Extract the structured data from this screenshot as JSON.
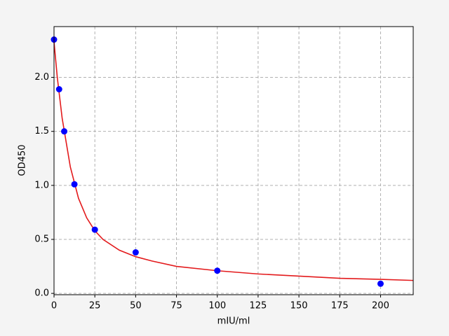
{
  "chart_data": {
    "type": "scatter",
    "x_label": "mIU/ml",
    "y_label": "OD450",
    "xlim": [
      0,
      220
    ],
    "ylim": [
      -0.012,
      2.47
    ],
    "xticks": [
      0,
      25,
      50,
      75,
      100,
      125,
      150,
      175,
      200
    ],
    "yticks": [
      {
        "value": 0,
        "label": "0.0"
      },
      0.5,
      {
        "value": 1,
        "label": "1.0"
      },
      1.5,
      {
        "value": 2,
        "label": "2.0"
      }
    ],
    "grid": true,
    "series": [
      {
        "mode": "line",
        "color": "#e31a1c",
        "x": [
          0,
          2,
          5,
          10,
          15,
          20,
          25,
          30,
          40,
          50,
          60,
          75,
          100,
          125,
          150,
          175,
          200,
          220
        ],
        "values": [
          2.33,
          2.0,
          1.62,
          1.17,
          0.88,
          0.7,
          0.58,
          0.5,
          0.4,
          0.34,
          0.3,
          0.25,
          0.21,
          0.18,
          0.16,
          0.14,
          0.13,
          0.12
        ]
      },
      {
        "mode": "marker",
        "color": "#0000ff",
        "x": [
          0,
          3.125,
          6.25,
          12.5,
          25,
          50,
          100,
          200
        ],
        "values": [
          2.35,
          1.89,
          1.5,
          1.01,
          0.59,
          0.38,
          0.21,
          0.09
        ]
      }
    ]
  }
}
